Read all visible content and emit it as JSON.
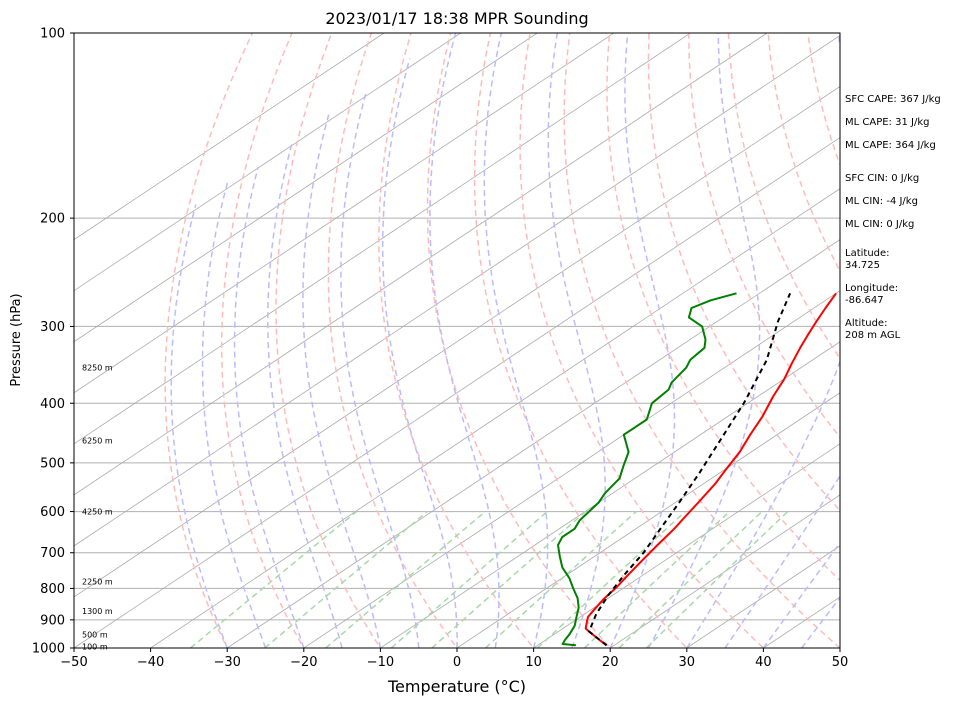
{
  "chart_data": {
    "type": "line",
    "title": "2023/01/17 18:38 MPR Sounding",
    "xlabel": "Temperature (°C)",
    "ylabel": "Pressure (hPa)",
    "xlim": [
      -50,
      50
    ],
    "ylim": [
      1000,
      100
    ],
    "y_scale": "log",
    "grid": true,
    "x_ticks": [
      "−50",
      "−40",
      "−30",
      "−20",
      "−10",
      "0",
      "10",
      "20",
      "30",
      "40",
      "50"
    ],
    "y_ticks": [
      "100",
      "200",
      "300",
      "400",
      "500",
      "600",
      "700",
      "800",
      "900",
      "1000"
    ],
    "series": [
      {
        "color": "#ff0000",
        "points": [
          [
            19,
            990
          ],
          [
            17,
            970
          ],
          [
            15,
            950
          ],
          [
            13,
            930
          ],
          [
            12,
            910
          ],
          [
            11,
            890
          ],
          [
            10.5,
            870
          ],
          [
            10,
            850
          ],
          [
            9.5,
            830
          ],
          [
            9,
            800
          ],
          [
            8,
            760
          ],
          [
            7,
            720
          ],
          [
            6,
            680
          ],
          [
            5,
            640
          ],
          [
            4,
            610
          ],
          [
            3,
            580
          ],
          [
            1.5,
            540
          ],
          [
            0,
            510
          ],
          [
            -1.5,
            480
          ],
          [
            -3.5,
            450
          ],
          [
            -5.5,
            420
          ],
          [
            -8,
            390
          ],
          [
            -10,
            365
          ],
          [
            -12,
            345
          ],
          [
            -14,
            325
          ],
          [
            -15.5,
            310
          ],
          [
            -17,
            295
          ],
          [
            -18.5,
            280
          ],
          [
            -20,
            265
          ]
        ]
      },
      {
        "color": "#008000",
        "points": [
          [
            15,
            990
          ],
          [
            13,
            985
          ],
          [
            12.5,
            970
          ],
          [
            12,
            950
          ],
          [
            11,
            920
          ],
          [
            9.5,
            890
          ],
          [
            8,
            860
          ],
          [
            6,
            830
          ],
          [
            3.5,
            800
          ],
          [
            1,
            770
          ],
          [
            -2,
            740
          ],
          [
            -4.5,
            710
          ],
          [
            -7,
            680
          ],
          [
            -8,
            660
          ],
          [
            -8,
            640
          ],
          [
            -9,
            620
          ],
          [
            -9.5,
            600
          ],
          [
            -10,
            580
          ],
          [
            -11,
            560
          ],
          [
            -12,
            530
          ],
          [
            -14,
            505
          ],
          [
            -16,
            480
          ],
          [
            -20,
            450
          ],
          [
            -20,
            425
          ],
          [
            -22.5,
            400
          ],
          [
            -23,
            380
          ],
          [
            -24,
            370
          ],
          [
            -25,
            350
          ],
          [
            -26,
            340
          ],
          [
            -26.5,
            325
          ],
          [
            -28,
            315
          ],
          [
            -31,
            300
          ],
          [
            -34.5,
            290
          ],
          [
            -36,
            280
          ],
          [
            -35,
            272
          ],
          [
            -33,
            265
          ]
        ]
      },
      {
        "color": "#000000",
        "dash": "5,4",
        "points": [
          [
            19,
            990
          ],
          [
            14,
            940
          ],
          [
            11.5,
            880
          ],
          [
            9.4,
            820
          ],
          [
            7.5,
            760
          ],
          [
            5.7,
            700
          ],
          [
            3.2,
            640
          ],
          [
            0.5,
            580
          ],
          [
            -2.6,
            520
          ],
          [
            -6.3,
            460
          ],
          [
            -10.5,
            400
          ],
          [
            -16,
            340
          ],
          [
            -22,
            295
          ],
          [
            -26,
            265
          ]
        ]
      }
    ],
    "height_labels": [
      {
        "label": "8250 m",
        "p": 350
      },
      {
        "label": "6250 m",
        "p": 460
      },
      {
        "label": "4250 m",
        "p": 600
      },
      {
        "label": "2250 m",
        "p": 780
      },
      {
        "label": "1300 m",
        "p": 870
      },
      {
        "label": "500 m",
        "p": 950
      },
      {
        "label": "100 m",
        "p": 995
      }
    ],
    "annotations": [
      "SFC CAPE: 367 J/kg",
      "ML CAPE: 31 J/kg",
      "ML CAPE: 364 J/kg",
      "SFC CIN: 0 J/kg",
      "ML CIN: -4 J/kg",
      "ML CIN: 0 J/kg",
      "Latitude:",
      "34.725",
      "Longitude:",
      "-86.647",
      "Altitude:",
      "208 m AGL"
    ],
    "background_line_colors": {
      "isotherm": "#aaaaaa",
      "dry_adiabat": "#ffbbbb",
      "moist_adiabat": "#bbbbff",
      "mixing_ratio": "#a8d8a8"
    }
  }
}
